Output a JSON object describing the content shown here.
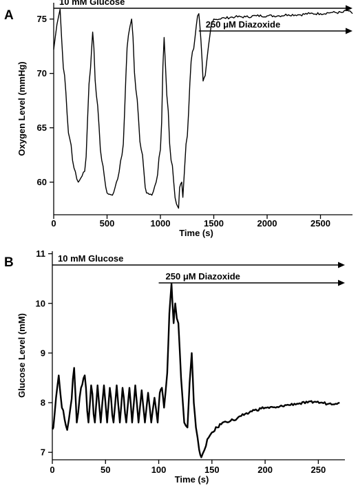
{
  "panels": [
    {
      "letter": "A"
    },
    {
      "letter": "B"
    }
  ],
  "chart_data": [
    {
      "type": "line",
      "panel": "A",
      "xlabel": "Time (s)",
      "ylabel": "Oxygen Level (mmHg)",
      "xlim": [
        0,
        2800
      ],
      "ylim": [
        57,
        76.5
      ],
      "xticks": [
        0,
        500,
        1000,
        1500,
        2000,
        2500
      ],
      "yticks": [
        60,
        65,
        70,
        75
      ],
      "annotations": [
        {
          "text": "10 mM Glucose",
          "x_start": 0,
          "x_end": 2800
        },
        {
          "text": "250 μM Diazoxide",
          "x_start": 1360,
          "x_end": 2800
        }
      ],
      "series": [
        {
          "x": [
            0,
            30,
            60,
            90,
            150,
            190,
            230,
            290,
            345,
            365,
            400,
            450,
            500,
            550,
            600,
            640,
            700,
            730,
            770,
            820,
            870,
            920,
            960,
            1000,
            1035,
            1060,
            1100,
            1150,
            1170,
            1180,
            1200,
            1210,
            1240,
            1300,
            1360,
            1380,
            1400,
            1420,
            1450,
            1480,
            1500,
            1550,
            1600,
            1700,
            1800,
            1900,
            2000,
            2100,
            2200,
            2300,
            2400,
            2500,
            2600,
            2700,
            2750,
            2800
          ],
          "y": [
            72.2,
            74.5,
            75.9,
            70.5,
            64.0,
            61.3,
            60.0,
            61.0,
            70.5,
            73.8,
            68.0,
            62.0,
            59.0,
            58.8,
            60.3,
            62.5,
            73.5,
            75.0,
            68.5,
            63.0,
            59.0,
            58.8,
            60.0,
            63.0,
            73.3,
            68.0,
            62.0,
            58.0,
            57.6,
            59.5,
            60.0,
            58.6,
            63.5,
            72.0,
            75.5,
            73.0,
            69.3,
            69.8,
            72.5,
            74.7,
            75.0,
            75.0,
            75.1,
            75.2,
            75.2,
            75.3,
            75.3,
            75.3,
            75.4,
            75.4,
            75.5,
            75.5,
            75.6,
            75.6,
            75.8,
            75.5
          ]
        }
      ]
    },
    {
      "type": "line",
      "panel": "B",
      "xlabel": "Time (s)",
      "ylabel": "Glucose Level (mM)",
      "xlim": [
        0,
        275
      ],
      "ylim": [
        6.85,
        11.05
      ],
      "xticks": [
        0,
        50,
        100,
        150,
        200,
        250
      ],
      "yticks": [
        7,
        8,
        9,
        10,
        11
      ],
      "annotations": [
        {
          "text": "10 mM Glucose",
          "x_start": 0,
          "x_end": 275
        },
        {
          "text": "250 μM Diazoxide",
          "x_start": 100,
          "x_end": 275
        }
      ],
      "series": [
        {
          "x": [
            0,
            1,
            3.5,
            6,
            9,
            14,
            17,
            20.5,
            23,
            27,
            30.5,
            34,
            36.5,
            40,
            42.5,
            45.5,
            48.5,
            51.5,
            54,
            57.5,
            60.5,
            63.5,
            66,
            69.5,
            72.5,
            75,
            78,
            81,
            84,
            87,
            90,
            93,
            96,
            99,
            101,
            103,
            105,
            108,
            110,
            112,
            114,
            115.5,
            117,
            118.5,
            121,
            124,
            127,
            129,
            131,
            133,
            135,
            138,
            140,
            143,
            147,
            150,
            155,
            160,
            170,
            180,
            190,
            200,
            210,
            220,
            230,
            240,
            247,
            252,
            260,
            270
          ],
          "y": [
            7.5,
            7.5,
            8.1,
            8.55,
            7.9,
            7.45,
            7.9,
            8.7,
            7.6,
            8.3,
            8.55,
            7.6,
            8.35,
            7.6,
            8.35,
            7.6,
            8.35,
            7.6,
            8.3,
            7.6,
            8.35,
            7.6,
            8.3,
            7.6,
            8.3,
            7.6,
            8.35,
            7.6,
            8.25,
            7.6,
            8.2,
            7.6,
            8.1,
            7.6,
            8.2,
            8.3,
            7.9,
            8.6,
            9.8,
            10.4,
            9.6,
            10.0,
            9.7,
            9.6,
            8.5,
            7.6,
            7.5,
            8.4,
            9.0,
            8.0,
            7.5,
            7.05,
            6.9,
            7.05,
            7.3,
            7.4,
            7.5,
            7.6,
            7.65,
            7.75,
            7.85,
            7.9,
            7.9,
            7.95,
            7.98,
            8.0,
            8.02,
            8.0,
            7.98,
            8.0
          ]
        }
      ]
    }
  ]
}
